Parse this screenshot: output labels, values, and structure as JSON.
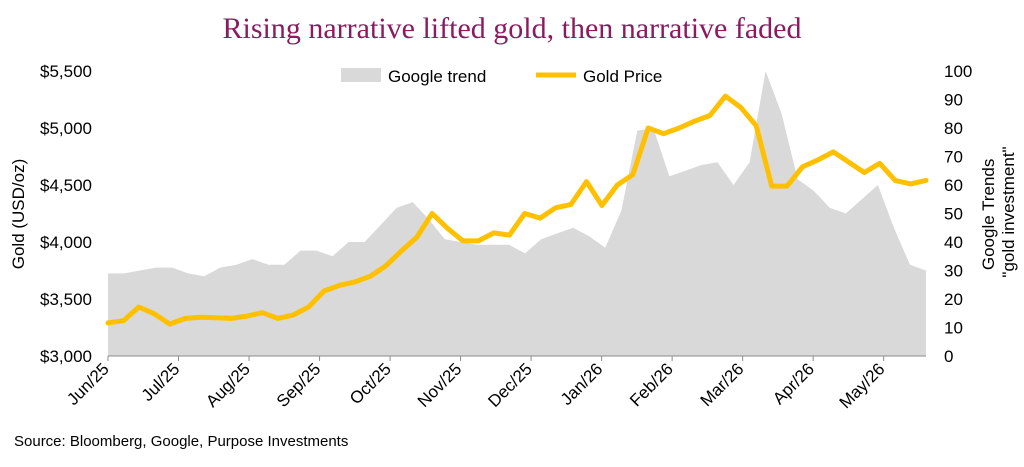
{
  "chart_data": {
    "type": "line",
    "title": "Rising narrative lifted gold, then narrative faded",
    "source": "Source: Bloomberg, Google, Purpose Investments",
    "x_tick_labels": [
      "Jun/25",
      "Jul/25",
      "Aug/25",
      "Sep/25",
      "Oct/25",
      "Nov/25",
      "Dec/25",
      "Jan/26",
      "Feb/26",
      "Mar/26",
      "Apr/26",
      "May/26"
    ],
    "y_left": {
      "label": "Gold (USD/oz)",
      "lim": [
        3000,
        5500
      ],
      "ticks": [
        "$3,000",
        "$3,500",
        "$4,000",
        "$4,500",
        "$5,000",
        "$5,500"
      ]
    },
    "y_right": {
      "label_lines": [
        "Google Trends",
        "\"gold investment\""
      ],
      "lim": [
        0,
        100
      ],
      "ticks": [
        "0",
        "10",
        "20",
        "30",
        "40",
        "50",
        "60",
        "70",
        "80",
        "90",
        "100"
      ]
    },
    "legend": {
      "position": "top-center",
      "entries": [
        "Google trend",
        "Gold Price"
      ]
    },
    "series": [
      {
        "name": "Google trend",
        "kind": "area",
        "axis": "right",
        "color": "#d9d9d9",
        "values": [
          29,
          29,
          30,
          31,
          31,
          29,
          28,
          31,
          32,
          34,
          32,
          32,
          37,
          37,
          35,
          40,
          40,
          46,
          52,
          54,
          48,
          41,
          40,
          39,
          39,
          39,
          36,
          41,
          43,
          45,
          42,
          38,
          51,
          79,
          80,
          63,
          65,
          67,
          68,
          60,
          68,
          100,
          85,
          62,
          58,
          52,
          50,
          55,
          60,
          45,
          32,
          30
        ]
      },
      {
        "name": "Gold Price",
        "kind": "line",
        "axis": "left",
        "color": "#ffc000",
        "values": [
          3290,
          3310,
          3430,
          3370,
          3280,
          3330,
          3340,
          3335,
          3330,
          3350,
          3380,
          3330,
          3360,
          3430,
          3570,
          3620,
          3650,
          3700,
          3790,
          3920,
          4040,
          4250,
          4120,
          4010,
          4010,
          4080,
          4060,
          4250,
          4210,
          4300,
          4330,
          4530,
          4320,
          4500,
          4590,
          5000,
          4950,
          5000,
          5060,
          5110,
          5280,
          5180,
          5020,
          4490,
          4490,
          4660,
          4720,
          4790,
          4700,
          4610,
          4690,
          4540,
          4510,
          4540
        ]
      }
    ]
  }
}
